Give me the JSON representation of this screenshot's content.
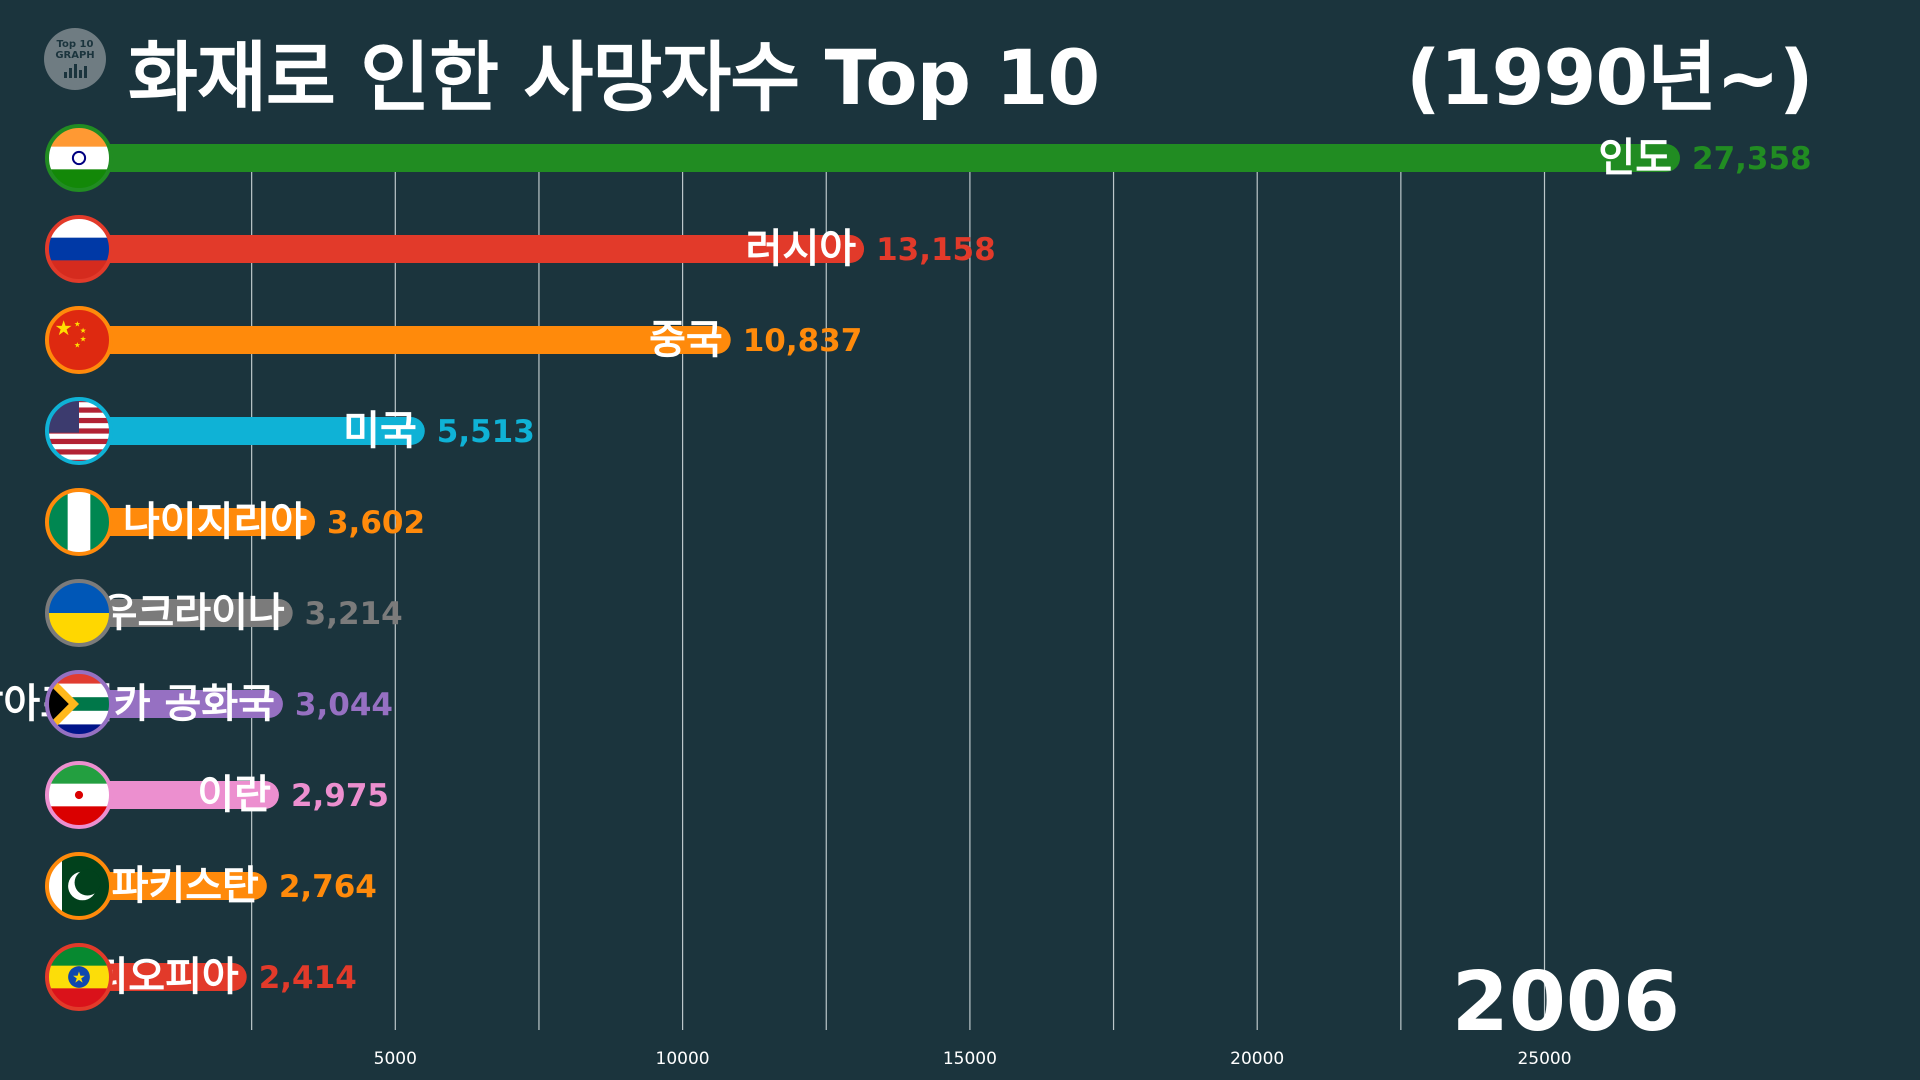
{
  "header": {
    "logo_line1": "Top 10",
    "logo_line2": "GRAPH",
    "title": "화재로 인한 사망자수 Top 10",
    "subtitle": "(1990년~)"
  },
  "year": "2006",
  "chart_data": {
    "type": "bar",
    "orientation": "horizontal",
    "title": "화재로 인한 사망자수 Top 10",
    "subtitle": "(1990년~)",
    "period_label": "2006",
    "xlim": [
      0,
      27358
    ],
    "x_ticks": [
      5000,
      10000,
      15000,
      20000,
      25000
    ],
    "grid": true,
    "categories": [
      "인도",
      "러시아",
      "중국",
      "미국",
      "나이지리아",
      "우크라이나",
      "남아프리카 공화국",
      "이란",
      "파키스탄",
      "에티오피아"
    ],
    "values": [
      27358,
      13158,
      10837,
      5513,
      3602,
      3214,
      3044,
      2975,
      2764,
      2414
    ],
    "value_labels": [
      "27,358",
      "13,158",
      "10,837",
      "5,513",
      "3,602",
      "3,214",
      "3,044",
      "2,975",
      "2,764",
      "2,414"
    ],
    "colors": [
      "#218c22",
      "#e23a2a",
      "#ff8a0b",
      "#0fb2d6",
      "#ff8a0b",
      "#7b7b7b",
      "#9670c2",
      "#ec8fcf",
      "#ff8a0b",
      "#e23a2a"
    ],
    "flags": [
      "india-flag-icon",
      "russia-flag-icon",
      "china-flag-icon",
      "usa-flag-icon",
      "nigeria-flag-icon",
      "ukraine-flag-icon",
      "south-africa-flag-icon",
      "iran-flag-icon",
      "pakistan-flag-icon",
      "ethiopia-flag-icon"
    ]
  }
}
